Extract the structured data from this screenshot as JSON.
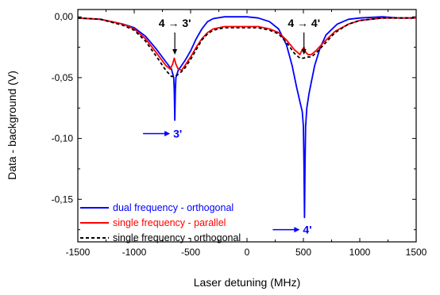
{
  "chart_data": {
    "type": "line",
    "title": "",
    "xlabel": "Laser detuning (MHz)",
    "ylabel": "Data - background (V)",
    "xlim": [
      -1500,
      1500
    ],
    "ylim": [
      -0.185,
      0.006
    ],
    "x_ticks": [
      -1500,
      -1000,
      -500,
      0,
      500,
      1000,
      1500
    ],
    "x_tick_labels": [
      "-1500",
      "-1000",
      "-500",
      "0",
      "500",
      "1000",
      "1500"
    ],
    "y_ticks": [
      0.0,
      -0.05,
      -0.1,
      -0.15
    ],
    "y_tick_labels": [
      "0,00",
      "-0,05",
      "-0,10",
      "-0,15"
    ],
    "grid": false,
    "legend_position": "bottom-left",
    "series": [
      {
        "name": "dual frequency - orthogonal",
        "color": "#0000ff",
        "dash": "solid",
        "points": [
          [
            -1500,
            -0.001
          ],
          [
            -1300,
            -0.002
          ],
          [
            -1100,
            -0.006
          ],
          [
            -1000,
            -0.009
          ],
          [
            -900,
            -0.016
          ],
          [
            -800,
            -0.027
          ],
          [
            -720,
            -0.037
          ],
          [
            -670,
            -0.043
          ],
          [
            -650,
            -0.05
          ],
          [
            -645,
            -0.06
          ],
          [
            -640,
            -0.085
          ],
          [
            -635,
            -0.06
          ],
          [
            -630,
            -0.05
          ],
          [
            -610,
            -0.044
          ],
          [
            -550,
            -0.036
          ],
          [
            -500,
            -0.028
          ],
          [
            -450,
            -0.018
          ],
          [
            -400,
            -0.01
          ],
          [
            -350,
            -0.004
          ],
          [
            -300,
            -0.0015
          ],
          [
            -200,
            0.0
          ],
          [
            -100,
            0.0
          ],
          [
            0,
            0.0
          ],
          [
            100,
            -0.001
          ],
          [
            200,
            -0.004
          ],
          [
            280,
            -0.01
          ],
          [
            350,
            -0.023
          ],
          [
            400,
            -0.04
          ],
          [
            440,
            -0.058
          ],
          [
            470,
            -0.07
          ],
          [
            490,
            -0.078
          ],
          [
            500,
            -0.09
          ],
          [
            505,
            -0.12
          ],
          [
            510,
            -0.165
          ],
          [
            515,
            -0.12
          ],
          [
            520,
            -0.09
          ],
          [
            530,
            -0.075
          ],
          [
            550,
            -0.063
          ],
          [
            600,
            -0.04
          ],
          [
            650,
            -0.025
          ],
          [
            700,
            -0.015
          ],
          [
            800,
            -0.006
          ],
          [
            900,
            -0.002
          ],
          [
            1000,
            -0.001
          ],
          [
            1200,
            0.0
          ],
          [
            1350,
            -0.001
          ],
          [
            1500,
            -0.001
          ]
        ]
      },
      {
        "name": "single frequency - parallel",
        "color": "#ff0000",
        "dash": "solid",
        "points": [
          [
            -1500,
            -0.001
          ],
          [
            -1300,
            -0.002
          ],
          [
            -1100,
            -0.006
          ],
          [
            -1000,
            -0.01
          ],
          [
            -900,
            -0.018
          ],
          [
            -800,
            -0.03
          ],
          [
            -720,
            -0.04
          ],
          [
            -680,
            -0.043
          ],
          [
            -660,
            -0.039
          ],
          [
            -645,
            -0.034
          ],
          [
            -630,
            -0.039
          ],
          [
            -610,
            -0.043
          ],
          [
            -580,
            -0.044
          ],
          [
            -550,
            -0.04
          ],
          [
            -500,
            -0.033
          ],
          [
            -450,
            -0.025
          ],
          [
            -400,
            -0.018
          ],
          [
            -350,
            -0.013
          ],
          [
            -300,
            -0.01
          ],
          [
            -200,
            -0.008
          ],
          [
            -100,
            -0.008
          ],
          [
            0,
            -0.008
          ],
          [
            100,
            -0.008
          ],
          [
            200,
            -0.01
          ],
          [
            280,
            -0.013
          ],
          [
            350,
            -0.019
          ],
          [
            420,
            -0.027
          ],
          [
            470,
            -0.031
          ],
          [
            490,
            -0.027
          ],
          [
            505,
            -0.025
          ],
          [
            520,
            -0.029
          ],
          [
            540,
            -0.031
          ],
          [
            570,
            -0.031
          ],
          [
            610,
            -0.028
          ],
          [
            680,
            -0.021
          ],
          [
            780,
            -0.012
          ],
          [
            900,
            -0.006
          ],
          [
            1000,
            -0.003
          ],
          [
            1200,
            -0.001
          ],
          [
            1350,
            -0.001
          ],
          [
            1500,
            -0.001
          ]
        ]
      },
      {
        "name": "single frequency - orthogonal",
        "color": "#000000",
        "dash": "dashed",
        "points": [
          [
            -1500,
            -0.001
          ],
          [
            -1300,
            -0.002
          ],
          [
            -1100,
            -0.007
          ],
          [
            -1000,
            -0.011
          ],
          [
            -900,
            -0.02
          ],
          [
            -800,
            -0.033
          ],
          [
            -720,
            -0.044
          ],
          [
            -670,
            -0.049
          ],
          [
            -650,
            -0.049
          ],
          [
            -620,
            -0.048
          ],
          [
            -580,
            -0.045
          ],
          [
            -550,
            -0.042
          ],
          [
            -500,
            -0.035
          ],
          [
            -450,
            -0.027
          ],
          [
            -400,
            -0.019
          ],
          [
            -350,
            -0.014
          ],
          [
            -300,
            -0.011
          ],
          [
            -200,
            -0.009
          ],
          [
            -100,
            -0.009
          ],
          [
            0,
            -0.009
          ],
          [
            100,
            -0.009
          ],
          [
            200,
            -0.011
          ],
          [
            280,
            -0.014
          ],
          [
            350,
            -0.021
          ],
          [
            420,
            -0.03
          ],
          [
            470,
            -0.034
          ],
          [
            500,
            -0.034
          ],
          [
            530,
            -0.033
          ],
          [
            570,
            -0.033
          ],
          [
            610,
            -0.03
          ],
          [
            680,
            -0.023
          ],
          [
            780,
            -0.013
          ],
          [
            900,
            -0.006
          ],
          [
            1000,
            -0.003
          ],
          [
            1200,
            -0.001
          ],
          [
            1350,
            -0.001
          ],
          [
            1500,
            -0.001
          ]
        ]
      }
    ],
    "annotations": [
      {
        "text": "4 → 3'",
        "x": -640,
        "y": 0.0,
        "kind": "down-arrow",
        "color": "#000000"
      },
      {
        "text": "4 → 4'",
        "x": 505,
        "y": 0.0,
        "kind": "down-arrow",
        "color": "#000000"
      },
      {
        "text": "3'",
        "x": -640,
        "y": -0.096,
        "kind": "right-arrow",
        "color": "#0000ff"
      },
      {
        "text": "4'",
        "x": 510,
        "y": -0.175,
        "kind": "right-arrow",
        "color": "#0000ff"
      }
    ]
  }
}
